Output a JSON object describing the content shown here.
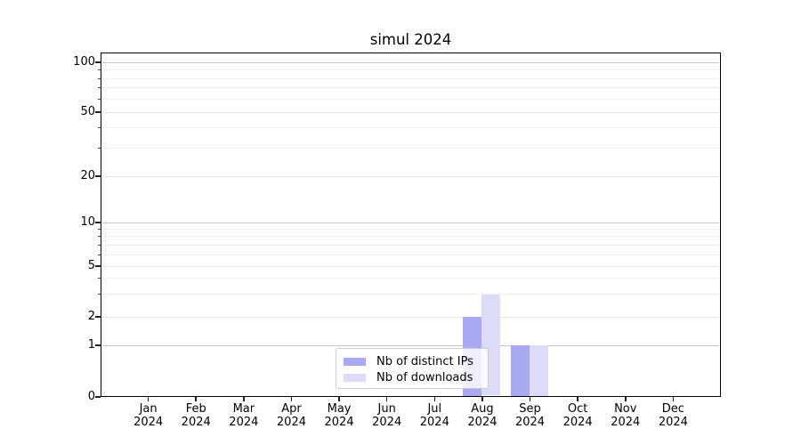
{
  "chart_data": {
    "type": "bar",
    "title": "simul 2024",
    "categories": [
      [
        "Jan",
        "2024"
      ],
      [
        "Feb",
        "2024"
      ],
      [
        "Mar",
        "2024"
      ],
      [
        "Apr",
        "2024"
      ],
      [
        "May",
        "2024"
      ],
      [
        "Jun",
        "2024"
      ],
      [
        "Jul",
        "2024"
      ],
      [
        "Aug",
        "2024"
      ],
      [
        "Sep",
        "2024"
      ],
      [
        "Oct",
        "2024"
      ],
      [
        "Nov",
        "2024"
      ],
      [
        "Dec",
        "2024"
      ]
    ],
    "series": [
      {
        "name": "Nb of distinct IPs",
        "color": "#a9a9f1",
        "values": [
          0,
          0,
          0,
          0,
          0,
          0,
          0,
          2,
          1,
          0,
          0,
          0
        ]
      },
      {
        "name": "Nb of downloads",
        "color": "#dcdcf8",
        "values": [
          0,
          0,
          0,
          0,
          0,
          0,
          0,
          3,
          1,
          0,
          0,
          0
        ]
      }
    ],
    "xlabel": "",
    "ylabel": "",
    "yscale": "log1p",
    "ylim": [
      0,
      107
    ],
    "yticks_major": [
      0,
      1,
      2,
      5,
      10,
      20,
      50,
      100
    ],
    "yticks_minor": [
      3,
      4,
      6,
      7,
      8,
      9,
      30,
      40,
      60,
      70,
      80,
      90
    ],
    "grid": "on",
    "legend_position": "lower center"
  },
  "colors": {
    "background": "#ffffff",
    "text": "#000000",
    "spine": "#000000",
    "grid_decade": "#c6c6c6",
    "grid_major": "#e4e4e4",
    "grid_minor": "#f1f1f1",
    "legend_border": "#cccccc"
  }
}
